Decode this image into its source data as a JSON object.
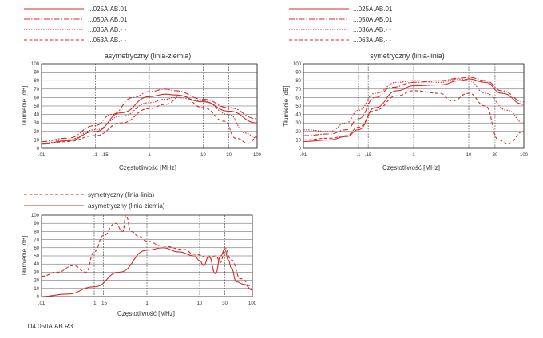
{
  "chart_data": [
    {
      "type": "line",
      "title": "asymetryczny (linia-ziemia)",
      "xlabel": "Częstotliwość [MHz]",
      "ylabel": "Tłumienie [dB]",
      "x_scale": "log",
      "xlim": [
        0.01,
        100
      ],
      "ylim": [
        0,
        100
      ],
      "xticks": [
        0.01,
        0.1,
        0.15,
        1,
        10,
        30,
        100
      ],
      "xtick_labels": [
        ".01",
        ".1",
        ".15",
        "1",
        "10",
        "30",
        "100"
      ],
      "yticks": [
        0,
        10,
        20,
        30,
        40,
        50,
        60,
        70,
        80,
        90,
        100
      ],
      "grid": true,
      "legend": "top-left",
      "series": [
        {
          "name": "...025A.AB.01",
          "style": "solid",
          "x": [
            0.01,
            0.03,
            0.1,
            0.3,
            1,
            2,
            3,
            10,
            30,
            100
          ],
          "y": [
            5,
            9,
            20,
            42,
            61,
            64,
            63,
            55,
            44,
            30
          ]
        },
        {
          "name": "...050A.AB.01",
          "style": "dashdot",
          "x": [
            0.01,
            0.03,
            0.1,
            0.2,
            0.5,
            1,
            2,
            3,
            10,
            30,
            100
          ],
          "y": [
            8,
            12,
            27,
            40,
            60,
            67,
            70,
            68,
            58,
            48,
            35
          ]
        },
        {
          "name": "...036A.AB.- -",
          "style": "dotted",
          "x": [
            0.01,
            0.03,
            0.1,
            0.3,
            1,
            2,
            3,
            10,
            30,
            60,
            100
          ],
          "y": [
            6,
            10,
            22,
            38,
            54,
            58,
            60,
            56,
            40,
            18,
            12
          ]
        },
        {
          "name": "...063A.AB.- -",
          "style": "dashed",
          "x": [
            0.01,
            0.03,
            0.1,
            0.3,
            1,
            2,
            4,
            10,
            25,
            40,
            70,
            100
          ],
          "y": [
            5,
            8,
            15,
            30,
            47,
            52,
            62,
            48,
            32,
            12,
            6,
            14
          ]
        }
      ]
    },
    {
      "type": "line",
      "title": "symetryczny (linia-linia)",
      "xlabel": "Częstotliwość [MHz]",
      "ylabel": "Tłumienie [dB]",
      "x_scale": "log",
      "xlim": [
        0.01,
        100
      ],
      "ylim": [
        0,
        100
      ],
      "xticks": [
        0.01,
        0.1,
        0.15,
        1,
        10,
        30,
        100
      ],
      "xtick_labels": [
        ".01",
        ".1",
        ".15",
        "1",
        "10",
        "30",
        "100"
      ],
      "yticks": [
        0,
        10,
        20,
        30,
        40,
        50,
        60,
        70,
        80,
        90,
        100
      ],
      "grid": true,
      "legend": "top-left",
      "series": [
        {
          "name": "...025A.AB.01",
          "style": "solid",
          "x": [
            0.01,
            0.03,
            0.06,
            0.1,
            0.2,
            0.5,
            1,
            3,
            7,
            10,
            20,
            40,
            100
          ],
          "y": [
            8,
            10,
            14,
            22,
            48,
            68,
            74,
            75,
            80,
            82,
            78,
            65,
            52
          ]
        },
        {
          "name": "...050A.AB.01",
          "style": "dashdot",
          "x": [
            0.01,
            0.03,
            0.06,
            0.1,
            0.2,
            0.4,
            1,
            3,
            7,
            10,
            20,
            40,
            100
          ],
          "y": [
            15,
            17,
            22,
            35,
            60,
            72,
            78,
            80,
            83,
            84,
            80,
            68,
            55
          ]
        },
        {
          "name": "...036A.AB.- -",
          "style": "dotted",
          "x": [
            0.01,
            0.03,
            0.06,
            0.1,
            0.2,
            0.5,
            1,
            3,
            7,
            10,
            20,
            50,
            100
          ],
          "y": [
            22,
            20,
            30,
            45,
            65,
            78,
            80,
            78,
            82,
            80,
            65,
            45,
            30
          ]
        },
        {
          "name": "...063A.AB.- -",
          "style": "dashed",
          "x": [
            0.01,
            0.03,
            0.06,
            0.1,
            0.2,
            0.5,
            1,
            3,
            5,
            10,
            20,
            35,
            50,
            100
          ],
          "y": [
            10,
            12,
            15,
            25,
            45,
            62,
            68,
            65,
            56,
            65,
            50,
            10,
            5,
            20
          ]
        }
      ]
    },
    {
      "type": "line",
      "title": "",
      "xlabel": "Częstotliwość [MHz]",
      "ylabel": "Tłumienie [dB]",
      "x_scale": "log",
      "xlim": [
        0.01,
        100
      ],
      "ylim": [
        0,
        100
      ],
      "xticks": [
        0.01,
        0.1,
        0.15,
        1,
        10,
        30,
        100
      ],
      "xtick_labels": [
        ".01",
        ".1",
        ".15",
        "1",
        "10",
        "30",
        "100"
      ],
      "yticks": [
        0,
        10,
        20,
        30,
        40,
        50,
        60,
        70,
        80,
        90,
        100
      ],
      "grid": true,
      "legend": "top-left",
      "series": [
        {
          "name": "symetryczny (linia-linia)",
          "style": "dashed",
          "x": [
            0.01,
            0.02,
            0.04,
            0.07,
            0.1,
            0.15,
            0.25,
            0.35,
            0.4,
            0.5,
            0.7,
            1,
            2,
            5,
            8,
            15,
            20,
            25,
            30,
            40,
            60,
            100
          ],
          "y": [
            25,
            30,
            38,
            30,
            55,
            75,
            90,
            80,
            100,
            80,
            74,
            68,
            62,
            58,
            52,
            48,
            50,
            42,
            60,
            45,
            22,
            12
          ]
        },
        {
          "name": "asymetryczny (linia-ziemia)",
          "style": "solid",
          "x": [
            0.01,
            0.03,
            0.1,
            0.3,
            1,
            2,
            4,
            8,
            10,
            12,
            15,
            20,
            25,
            30,
            35,
            40,
            50,
            70,
            100
          ],
          "y": [
            0,
            3,
            12,
            30,
            57,
            60,
            55,
            50,
            44,
            38,
            50,
            28,
            50,
            58,
            45,
            35,
            18,
            15,
            8
          ]
        }
      ]
    }
  ],
  "footer_code": "...D4.050A.AB.R3"
}
